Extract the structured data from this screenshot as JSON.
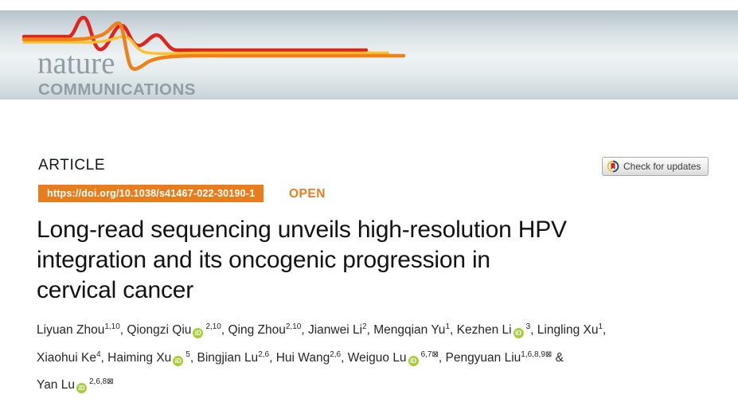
{
  "masthead": {
    "brand_top": "nature",
    "brand_bottom": "COMMUNICATIONS"
  },
  "article": {
    "section_label": "ARTICLE",
    "doi": "https://doi.org/10.1038/s41467-022-30190-1",
    "open_label": "OPEN",
    "check_updates_label": "Check for updates",
    "title_lines": [
      "Long-read sequencing unveils high-resolution HPV",
      "integration and its oncogenic progression in",
      "cervical cancer"
    ]
  },
  "icons": {
    "orcid_label": "iD",
    "mail_glyph": "⊠"
  },
  "colors": {
    "accent_orange": "#e87d1e",
    "orcid_green": "#a6ce39",
    "brand_gray": "#8f9da4",
    "ribbon_red": "#e0231c",
    "ribbon_orange": "#f08119",
    "ribbon_yellow": "#fbc22e",
    "crossmark_yellow": "#f2c230",
    "crossmark_navy": "#1d4f6e",
    "crossmark_red": "#d8261f"
  },
  "author_lines": [
    [
      {
        "name": "Liyuan Zhou",
        "orcid": false,
        "sup": "1,10",
        "mail": false,
        "after": ", "
      },
      {
        "name": "Qiongzi Qiu",
        "orcid": true,
        "sup": "2,10",
        "mail": false,
        "after": ", "
      },
      {
        "name": "Qing Zhou",
        "orcid": false,
        "sup": "2,10",
        "mail": false,
        "after": ", "
      },
      {
        "name": "Jianwei Li",
        "orcid": false,
        "sup": "2",
        "mail": false,
        "after": ", "
      },
      {
        "name": "Mengqian Yu",
        "orcid": false,
        "sup": "1",
        "mail": false,
        "after": ", "
      },
      {
        "name": "Kezhen Li",
        "orcid": true,
        "sup": "3",
        "mail": false,
        "after": ", "
      },
      {
        "name": "Lingling Xu",
        "orcid": false,
        "sup": "1",
        "mail": false,
        "after": ","
      }
    ],
    [
      {
        "name": "Xiaohui Ke",
        "orcid": false,
        "sup": "4",
        "mail": false,
        "after": ", "
      },
      {
        "name": "Haiming Xu",
        "orcid": true,
        "sup": "5",
        "mail": false,
        "after": ", "
      },
      {
        "name": "Bingjian Lu",
        "orcid": false,
        "sup": "2,6",
        "mail": false,
        "after": ", "
      },
      {
        "name": "Hui Wang",
        "orcid": false,
        "sup": "2,6",
        "mail": false,
        "after": ", "
      },
      {
        "name": "Weiguo Lu",
        "orcid": true,
        "sup": "6,7",
        "mail": true,
        "after": ", "
      },
      {
        "name": "Pengyuan Liu",
        "orcid": false,
        "sup": "1,6,8,9",
        "mail": true,
        "after": " &"
      }
    ],
    [
      {
        "name": "Yan Lu",
        "orcid": true,
        "sup": "2,6,8",
        "mail": true,
        "after": ""
      }
    ]
  ]
}
